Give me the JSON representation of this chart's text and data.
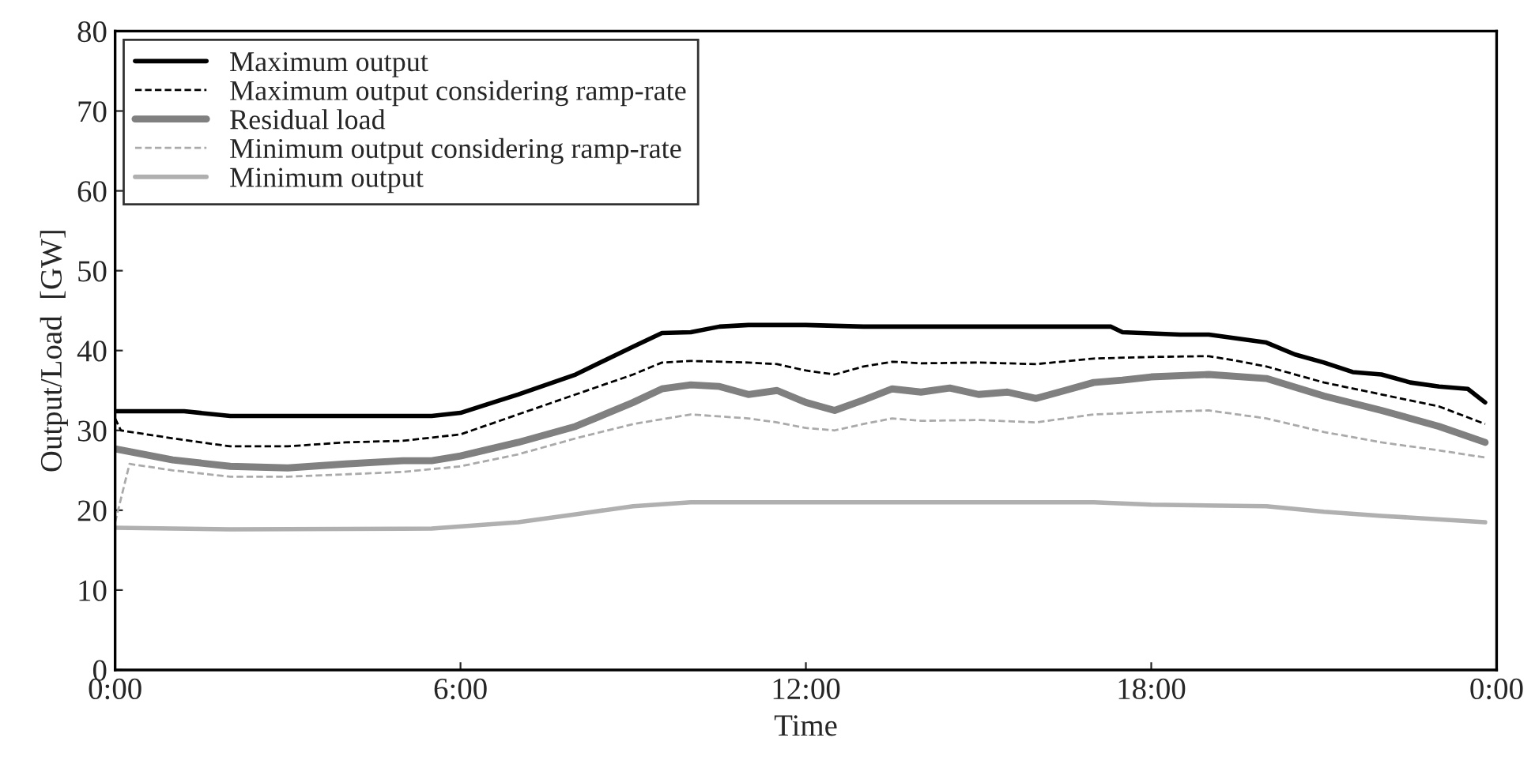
{
  "chart_data": {
    "type": "line",
    "xlabel": "Time",
    "ylabel": "Output/Load  [GW]",
    "xlim": [
      0,
      24
    ],
    "xticks": [
      {
        "value": 0,
        "label": "0:00"
      },
      {
        "value": 6,
        "label": "6:00"
      },
      {
        "value": 12,
        "label": "12:00"
      },
      {
        "value": 18,
        "label": "18:00"
      },
      {
        "value": 24,
        "label": "0:00"
      }
    ],
    "ylim": [
      0,
      80
    ],
    "yticks": [
      0,
      10,
      20,
      30,
      40,
      50,
      60,
      70,
      80
    ],
    "grid": false,
    "legend": "top left",
    "marker": "none",
    "series": [
      {
        "name": "Maximum output",
        "color": "#000000",
        "line_style": "solid",
        "x": [
          0,
          1.2,
          2,
          5.5,
          6,
          7,
          8,
          9,
          9.5,
          10,
          10.5,
          11,
          12,
          13,
          17.3,
          17.5,
          18.5,
          19,
          19.5,
          20,
          20.5,
          21,
          21.5,
          22,
          22.5,
          23,
          23.5,
          23.8
        ],
        "values": [
          32.4,
          32.4,
          31.8,
          31.8,
          32.2,
          34.5,
          37,
          40.5,
          42.2,
          42.3,
          43,
          43.2,
          43.2,
          43,
          43,
          42.3,
          42,
          42,
          41.5,
          41,
          39.5,
          38.5,
          37.3,
          37,
          36,
          35.5,
          35.2,
          33.5
        ]
      },
      {
        "name": "Maximum output considering ramp-rate",
        "color": "#000000",
        "line_style": "dashed",
        "x": [
          0,
          0.1,
          1,
          2,
          3,
          4,
          5,
          6,
          7,
          8,
          9,
          9.5,
          10,
          11,
          11.5,
          12,
          12.5,
          13,
          13.5,
          14,
          15,
          16,
          17,
          18,
          19,
          19.5,
          20,
          21,
          22,
          23,
          23.8
        ],
        "values": [
          31.5,
          30,
          29,
          28,
          28,
          28.5,
          28.7,
          29.5,
          32,
          34.5,
          37,
          38.5,
          38.7,
          38.5,
          38.3,
          37.5,
          37,
          38,
          38.6,
          38.4,
          38.5,
          38.3,
          39,
          39.2,
          39.3,
          38.7,
          38,
          36,
          34.5,
          33,
          30.8
        ]
      },
      {
        "name": "Residual load",
        "color": "#808080",
        "line_style": "solid",
        "x": [
          0,
          1,
          2,
          3,
          4,
          5,
          5.5,
          6,
          7,
          8,
          9,
          9.5,
          10,
          10.5,
          11,
          11.5,
          12,
          12.5,
          13,
          13.5,
          14,
          14.5,
          15,
          15.5,
          16,
          16.5,
          17,
          17.5,
          18,
          19,
          20,
          21,
          22,
          23,
          23.8
        ],
        "values": [
          27.7,
          26.3,
          25.5,
          25.3,
          25.8,
          26.2,
          26.2,
          26.8,
          28.5,
          30.5,
          33.5,
          35.2,
          35.7,
          35.5,
          34.5,
          35,
          33.5,
          32.5,
          33.8,
          35.2,
          34.8,
          35.3,
          34.5,
          34.8,
          34,
          35,
          36,
          36.3,
          36.7,
          37,
          36.5,
          34.3,
          32.5,
          30.5,
          28.5
        ]
      },
      {
        "name": "Minimum output considering ramp-rate",
        "color": "#aaaaaa",
        "line_style": "dashed",
        "x": [
          0,
          0.25,
          1,
          2,
          3,
          4,
          5,
          6,
          7,
          8,
          9,
          10,
          11,
          11.5,
          12,
          12.5,
          13,
          13.5,
          14,
          15,
          16,
          17,
          18,
          19,
          20,
          21,
          22,
          23,
          23.8
        ],
        "values": [
          18.5,
          25.8,
          25,
          24.2,
          24.2,
          24.5,
          24.8,
          25.5,
          27,
          29,
          30.8,
          32,
          31.5,
          31,
          30.3,
          30,
          30.8,
          31.5,
          31.2,
          31.3,
          31,
          32,
          32.3,
          32.5,
          31.5,
          29.8,
          28.5,
          27.5,
          26.6
        ]
      },
      {
        "name": "Minimum output",
        "color": "#b0b0b0",
        "line_style": "solid",
        "x": [
          0,
          2,
          5.5,
          7,
          8,
          9,
          10,
          12,
          17,
          18,
          20,
          21,
          22,
          23.8
        ],
        "values": [
          17.8,
          17.6,
          17.7,
          18.5,
          19.5,
          20.5,
          21,
          21,
          21,
          20.7,
          20.5,
          19.8,
          19.3,
          18.5
        ]
      }
    ]
  }
}
